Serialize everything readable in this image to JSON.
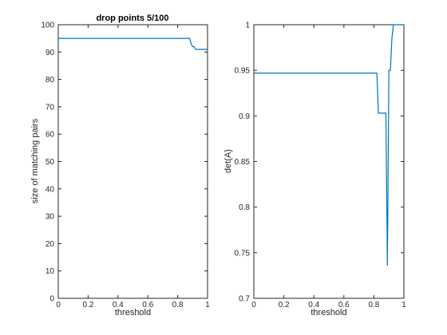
{
  "chart_data": [
    {
      "type": "line",
      "title": "drop points 5/100",
      "xlabel": "threshold",
      "ylabel": "size of matching pairs",
      "xlim": [
        0,
        1
      ],
      "ylim": [
        0,
        100
      ],
      "xticks": [
        0,
        0.2,
        0.4,
        0.6,
        0.8,
        1
      ],
      "xtick_labels": [
        "0",
        "0.2",
        "0.4",
        "0.6",
        "0.8",
        "1"
      ],
      "yticks": [
        0,
        10,
        20,
        30,
        40,
        50,
        60,
        70,
        80,
        90,
        100
      ],
      "ytick_labels": [
        "0",
        "10",
        "20",
        "30",
        "40",
        "50",
        "60",
        "70",
        "80",
        "90",
        "100"
      ],
      "grid": false,
      "color": "#0072bd",
      "series": [
        {
          "x": [
            0,
            0.88,
            0.89,
            0.9,
            0.91,
            0.92,
            1
          ],
          "y": [
            95,
            95,
            93,
            92,
            92,
            91,
            91
          ]
        }
      ]
    },
    {
      "type": "line",
      "title": "",
      "xlabel": "threshold",
      "ylabel": "det(A)",
      "xlim": [
        0,
        1
      ],
      "ylim": [
        0.7,
        1
      ],
      "xticks": [
        0,
        0.2,
        0.4,
        0.6,
        0.8,
        1
      ],
      "xtick_labels": [
        "0",
        "0.2",
        "0.4",
        "0.6",
        "0.8",
        "1"
      ],
      "yticks": [
        0.7,
        0.75,
        0.8,
        0.85,
        0.9,
        0.95,
        1
      ],
      "ytick_labels": [
        "0.7",
        "0.75",
        "0.8",
        "0.85",
        "0.9",
        "0.95",
        "1"
      ],
      "grid": false,
      "color": "#0072bd",
      "series": [
        {
          "x": [
            0,
            0.82,
            0.83,
            0.87,
            0.88,
            0.89,
            0.9,
            0.91,
            0.92,
            0.93,
            0.94,
            1
          ],
          "y": [
            0.947,
            0.947,
            0.903,
            0.903,
            0.903,
            0.736,
            0.95,
            0.95,
            0.985,
            1.0,
            1.0,
            1.0
          ]
        }
      ]
    }
  ]
}
